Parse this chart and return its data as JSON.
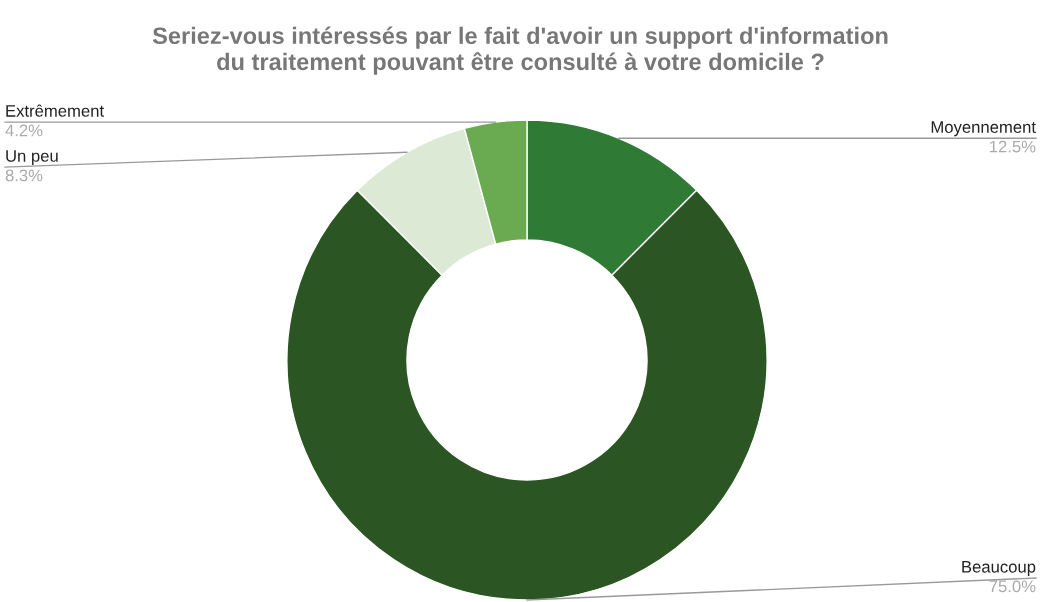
{
  "chart_data": {
    "type": "donut",
    "title": "Seriez-vous intéressés par le fait d'avoir un support d'information\ndu traitement pouvant être consulté à votre domicile ?",
    "categories": [
      "Moyennement",
      "Beaucoup",
      "Un peu",
      "Extrêmement"
    ],
    "values": [
      12.5,
      75.0,
      8.3,
      4.2
    ],
    "colors": [
      "#2f7a35",
      "#2b5522",
      "#dcead5",
      "#6aaa50"
    ],
    "value_labels": [
      "12.5%",
      "75.0%",
      "8.3%",
      "4.2%"
    ],
    "legend": false
  }
}
